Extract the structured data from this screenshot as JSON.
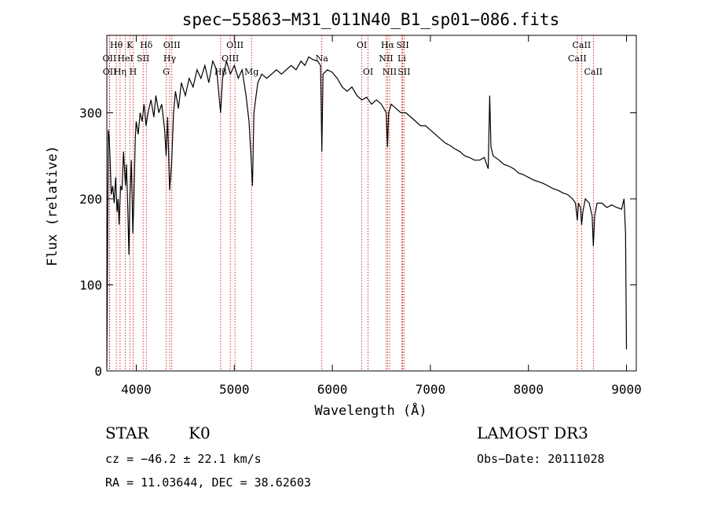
{
  "chart_data": {
    "type": "line",
    "title": "spec−55863−M31_011N40_B1_sp01−086.fits",
    "xlabel": "Wavelength (Å)",
    "ylabel": "Flux (relative)",
    "xlim": [
      3700,
      9100
    ],
    "ylim": [
      0,
      390
    ],
    "xticks": [
      {
        "value": 4000,
        "label": "4000"
      },
      {
        "value": 5000,
        "label": "5000"
      },
      {
        "value": 6000,
        "label": "6000"
      },
      {
        "value": 7000,
        "label": "7000"
      },
      {
        "value": 8000,
        "label": "8000"
      },
      {
        "value": 9000,
        "label": "9000"
      }
    ],
    "yticks": [
      {
        "value": 0,
        "label": "0"
      },
      {
        "value": 100,
        "label": "100"
      },
      {
        "value": 200,
        "label": "200"
      },
      {
        "value": 300,
        "label": "300"
      }
    ],
    "grid": false,
    "series": [
      {
        "name": "spectrum",
        "points": [
          [
            3700,
            5
          ],
          [
            3705,
            90
          ],
          [
            3715,
            280
          ],
          [
            3725,
            270
          ],
          [
            3735,
            240
          ],
          [
            3745,
            205
          ],
          [
            3760,
            215
          ],
          [
            3775,
            195
          ],
          [
            3790,
            225
          ],
          [
            3805,
            185
          ],
          [
            3815,
            200
          ],
          [
            3825,
            170
          ],
          [
            3840,
            215
          ],
          [
            3855,
            210
          ],
          [
            3870,
            255
          ],
          [
            3880,
            235
          ],
          [
            3890,
            215
          ],
          [
            3900,
            240
          ],
          [
            3915,
            185
          ],
          [
            3925,
            135
          ],
          [
            3935,
            200
          ],
          [
            3950,
            245
          ],
          [
            3965,
            160
          ],
          [
            3975,
            195
          ],
          [
            3990,
            270
          ],
          [
            4000,
            290
          ],
          [
            4020,
            275
          ],
          [
            4040,
            300
          ],
          [
            4060,
            290
          ],
          [
            4080,
            310
          ],
          [
            4100,
            285
          ],
          [
            4120,
            300
          ],
          [
            4150,
            315
          ],
          [
            4180,
            295
          ],
          [
            4200,
            320
          ],
          [
            4230,
            300
          ],
          [
            4260,
            310
          ],
          [
            4290,
            280
          ],
          [
            4305,
            250
          ],
          [
            4320,
            295
          ],
          [
            4340,
            210
          ],
          [
            4360,
            240
          ],
          [
            4380,
            300
          ],
          [
            4400,
            325
          ],
          [
            4430,
            305
          ],
          [
            4460,
            335
          ],
          [
            4500,
            320
          ],
          [
            4540,
            340
          ],
          [
            4580,
            330
          ],
          [
            4620,
            350
          ],
          [
            4660,
            340
          ],
          [
            4700,
            355
          ],
          [
            4740,
            335
          ],
          [
            4780,
            360
          ],
          [
            4820,
            350
          ],
          [
            4860,
            300
          ],
          [
            4880,
            340
          ],
          [
            4920,
            360
          ],
          [
            4960,
            345
          ],
          [
            5000,
            355
          ],
          [
            5040,
            340
          ],
          [
            5080,
            350
          ],
          [
            5120,
            320
          ],
          [
            5150,
            290
          ],
          [
            5170,
            250
          ],
          [
            5185,
            215
          ],
          [
            5200,
            300
          ],
          [
            5240,
            335
          ],
          [
            5280,
            345
          ],
          [
            5330,
            340
          ],
          [
            5380,
            345
          ],
          [
            5430,
            350
          ],
          [
            5480,
            345
          ],
          [
            5530,
            350
          ],
          [
            5580,
            355
          ],
          [
            5630,
            350
          ],
          [
            5680,
            360
          ],
          [
            5720,
            355
          ],
          [
            5760,
            365
          ],
          [
            5800,
            362
          ],
          [
            5850,
            360
          ],
          [
            5880,
            355
          ],
          [
            5893,
            255
          ],
          [
            5905,
            345
          ],
          [
            5950,
            350
          ],
          [
            6000,
            347
          ],
          [
            6050,
            340
          ],
          [
            6100,
            330
          ],
          [
            6150,
            325
          ],
          [
            6200,
            330
          ],
          [
            6250,
            320
          ],
          [
            6300,
            315
          ],
          [
            6350,
            318
          ],
          [
            6400,
            310
          ],
          [
            6450,
            315
          ],
          [
            6500,
            310
          ],
          [
            6550,
            300
          ],
          [
            6563,
            260
          ],
          [
            6575,
            300
          ],
          [
            6600,
            310
          ],
          [
            6650,
            305
          ],
          [
            6700,
            300
          ],
          [
            6750,
            300
          ],
          [
            6800,
            295
          ],
          [
            6850,
            290
          ],
          [
            6900,
            285
          ],
          [
            6950,
            285
          ],
          [
            7000,
            280
          ],
          [
            7050,
            275
          ],
          [
            7100,
            270
          ],
          [
            7150,
            265
          ],
          [
            7200,
            262
          ],
          [
            7250,
            258
          ],
          [
            7300,
            255
          ],
          [
            7350,
            250
          ],
          [
            7400,
            248
          ],
          [
            7450,
            245
          ],
          [
            7500,
            245
          ],
          [
            7550,
            248
          ],
          [
            7590,
            235
          ],
          [
            7605,
            320
          ],
          [
            7618,
            260
          ],
          [
            7640,
            250
          ],
          [
            7700,
            245
          ],
          [
            7750,
            240
          ],
          [
            7800,
            238
          ],
          [
            7850,
            235
          ],
          [
            7900,
            230
          ],
          [
            7950,
            228
          ],
          [
            8000,
            225
          ],
          [
            8050,
            222
          ],
          [
            8100,
            220
          ],
          [
            8150,
            218
          ],
          [
            8200,
            215
          ],
          [
            8250,
            212
          ],
          [
            8300,
            210
          ],
          [
            8350,
            207
          ],
          [
            8400,
            205
          ],
          [
            8450,
            200
          ],
          [
            8480,
            195
          ],
          [
            8498,
            175
          ],
          [
            8510,
            195
          ],
          [
            8530,
            190
          ],
          [
            8542,
            170
          ],
          [
            8555,
            185
          ],
          [
            8580,
            200
          ],
          [
            8620,
            195
          ],
          [
            8650,
            180
          ],
          [
            8662,
            145
          ],
          [
            8675,
            180
          ],
          [
            8700,
            195
          ],
          [
            8750,
            195
          ],
          [
            8800,
            190
          ],
          [
            8850,
            193
          ],
          [
            8900,
            190
          ],
          [
            8950,
            188
          ],
          [
            8975,
            200
          ],
          [
            8990,
            160
          ],
          [
            9000,
            25
          ]
        ]
      }
    ],
    "lines": [
      {
        "name": "Hθ",
        "wavelength": 3797,
        "row": 1
      },
      {
        "name": "OII",
        "wavelength": 3727,
        "row": 2
      },
      {
        "name": "OII",
        "wavelength": 3729,
        "row": 3
      },
      {
        "name": "K",
        "wavelength": 3934,
        "row": 1
      },
      {
        "name": "HeI",
        "wavelength": 3889,
        "row": 2
      },
      {
        "name": "Hη",
        "wavelength": 3835,
        "row": 3
      },
      {
        "name": "H",
        "wavelength": 3968,
        "row": 3
      },
      {
        "name": "Hδ",
        "wavelength": 4102,
        "row": 1
      },
      {
        "name": "SII",
        "wavelength": 4070,
        "row": 2
      },
      {
        "name": "OIII",
        "wavelength": 4363,
        "row": 1
      },
      {
        "name": "Hγ",
        "wavelength": 4341,
        "row": 2
      },
      {
        "name": "G",
        "wavelength": 4305,
        "row": 3
      },
      {
        "name": "OIII",
        "wavelength": 5007,
        "row": 1
      },
      {
        "name": "OIII",
        "wavelength": 4959,
        "row": 2
      },
      {
        "name": "Hβ",
        "wavelength": 4861,
        "row": 3
      },
      {
        "name": "Mg",
        "wavelength": 5175,
        "row": 3
      },
      {
        "name": "Na",
        "wavelength": 5893,
        "row": 2
      },
      {
        "name": "OI",
        "wavelength": 6300,
        "row": 1
      },
      {
        "name": "OI",
        "wavelength": 6364,
        "row": 3
      },
      {
        "name": "Hα",
        "wavelength": 6563,
        "row": 1
      },
      {
        "name": "NII",
        "wavelength": 6548,
        "row": 2
      },
      {
        "name": "NII",
        "wavelength": 6584,
        "row": 3
      },
      {
        "name": "SII",
        "wavelength": 6717,
        "row": 1
      },
      {
        "name": "Li",
        "wavelength": 6708,
        "row": 2
      },
      {
        "name": "SII",
        "wavelength": 6731,
        "row": 3
      },
      {
        "name": "CaII",
        "wavelength": 8542,
        "row": 1
      },
      {
        "name": "CaII",
        "wavelength": 8498,
        "row": 2
      },
      {
        "name": "CaII",
        "wavelength": 8662,
        "row": 3
      }
    ],
    "line_color": "#cc0000"
  },
  "info": {
    "object_class": "STAR",
    "subclass": "K0",
    "survey": "LAMOST DR3",
    "redshift_text": "cz = −46.2 ± 22.1 km/s",
    "obs_date_text": "Obs−Date: 20111028",
    "coords_text": "RA =  11.03644, DEC =  38.62603"
  }
}
